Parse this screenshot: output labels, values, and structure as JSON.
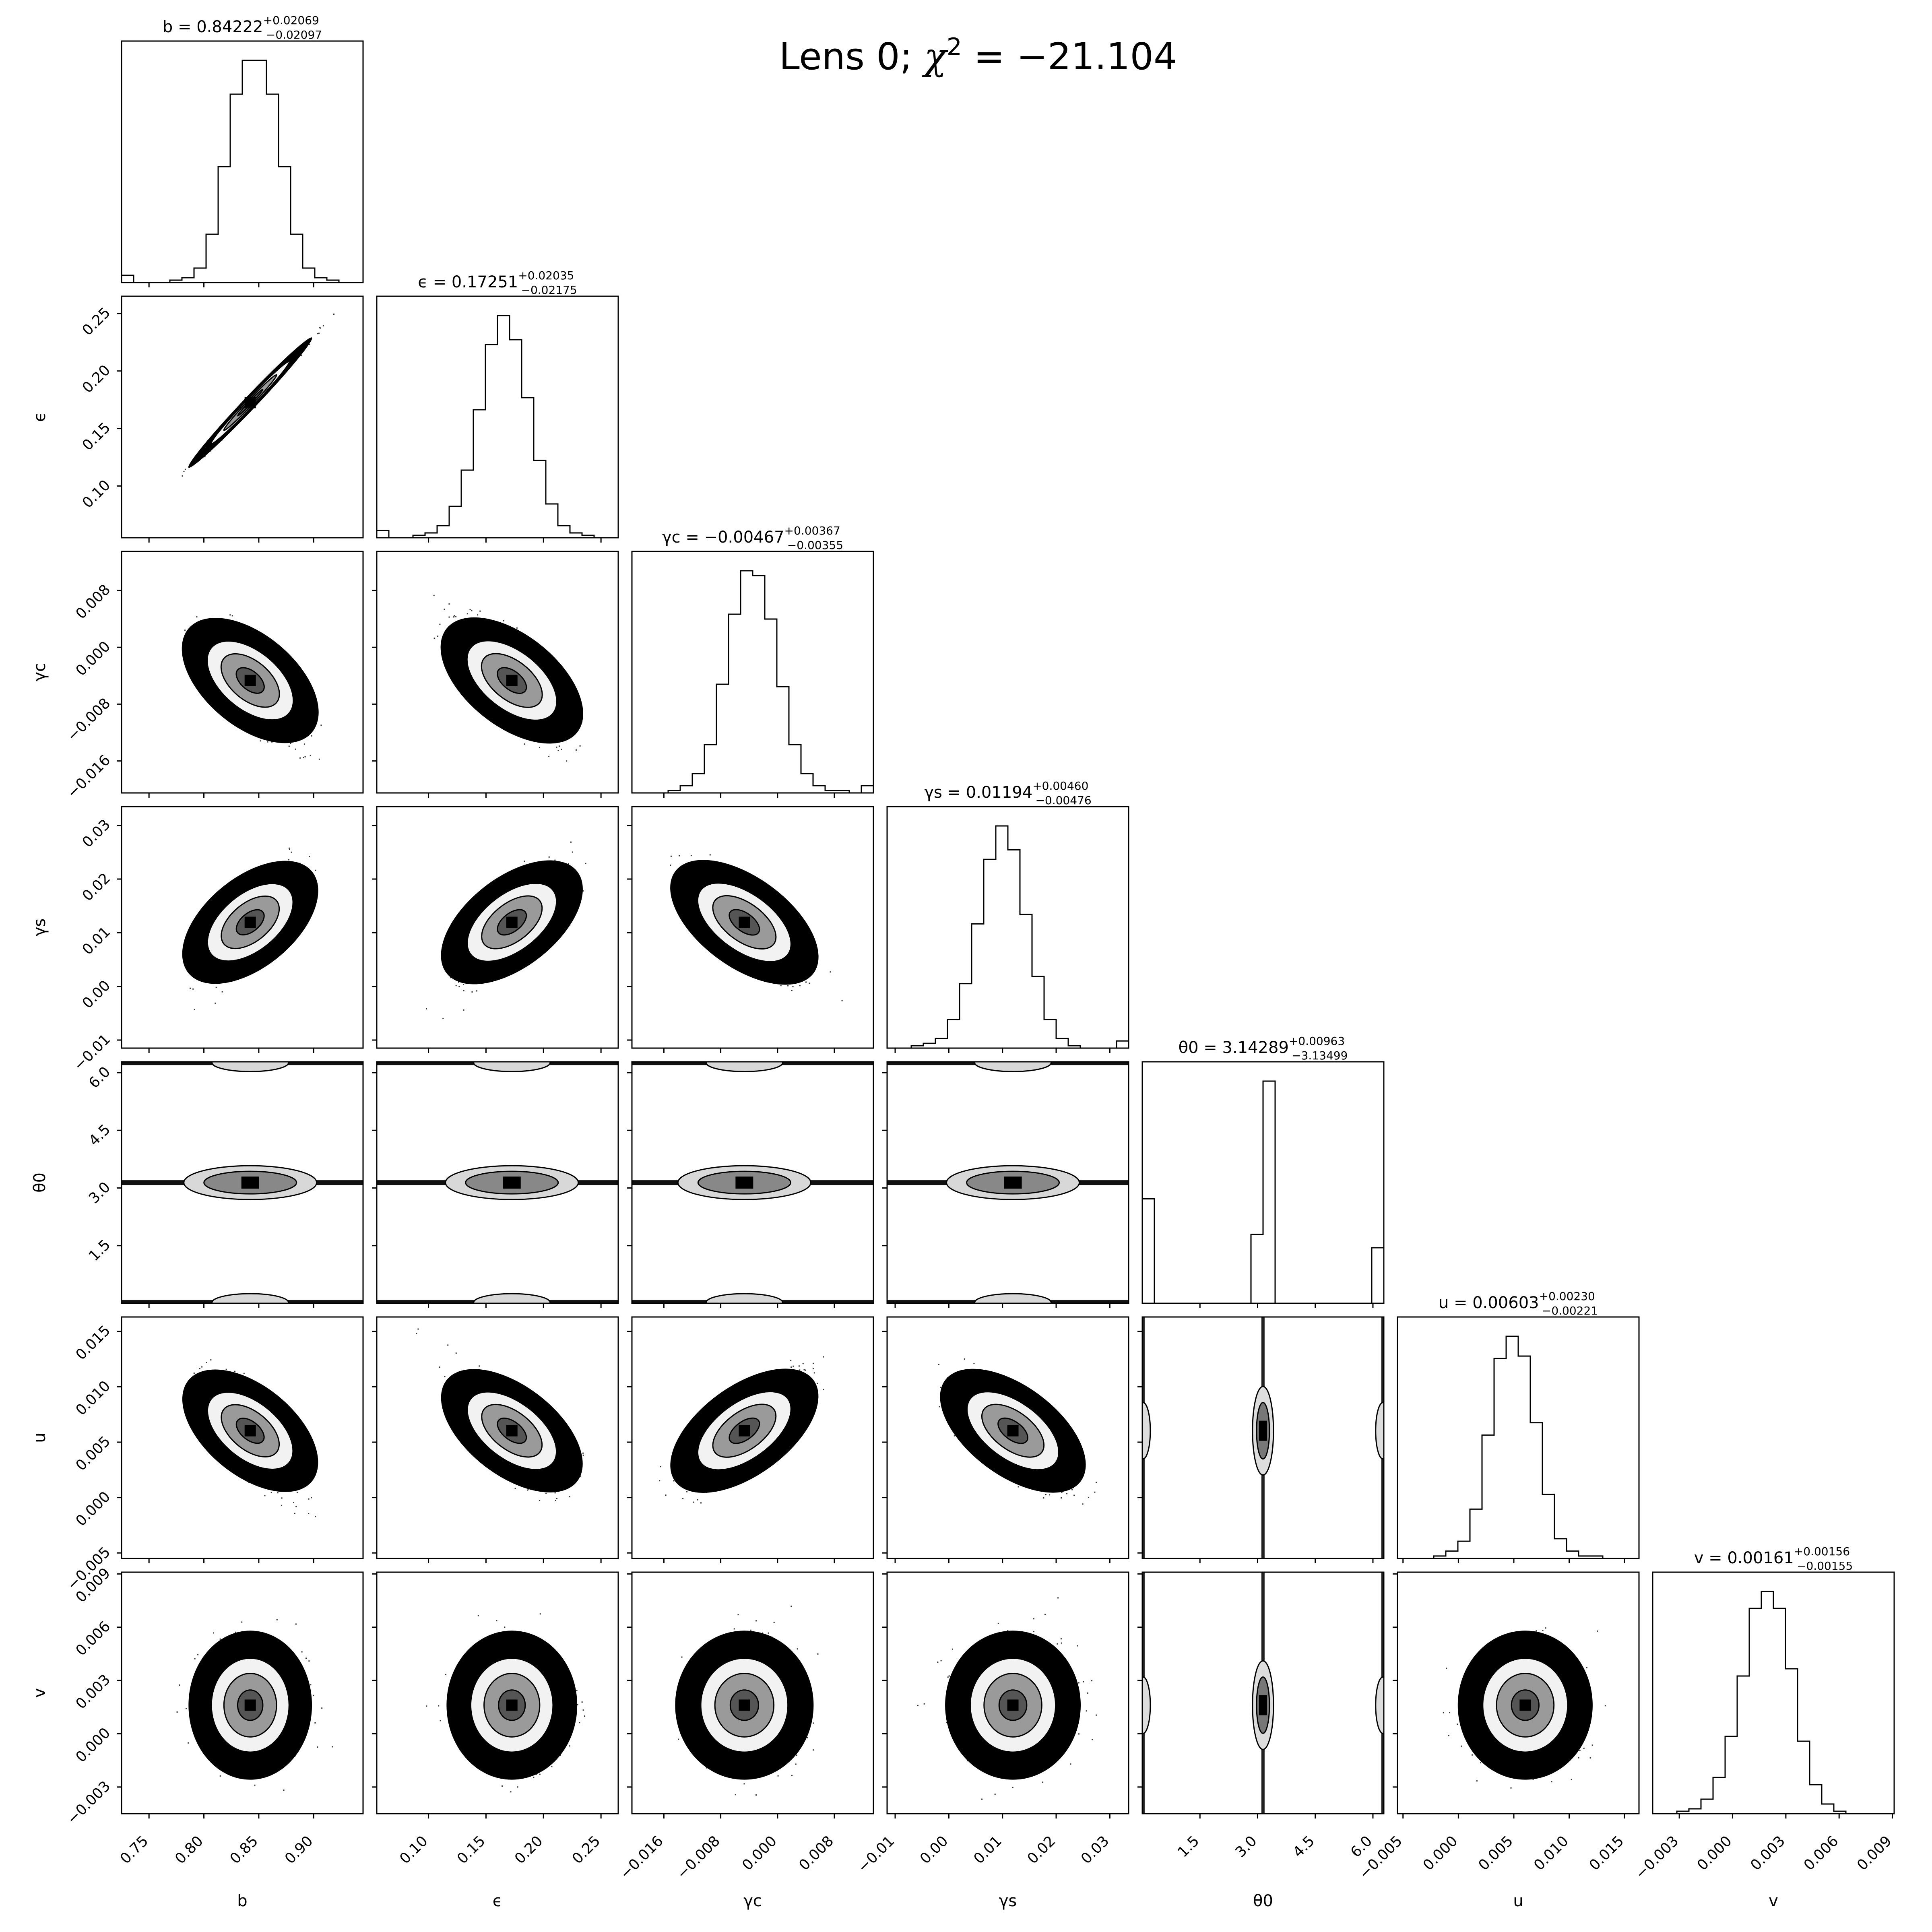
{
  "title": {
    "prefix": "Lens 0; ",
    "chi": "χ",
    "sup": "2",
    "suffix": " = −21.104"
  },
  "params": [
    {
      "name": "b",
      "label": "b",
      "median": "0.84222",
      "plus": "+0.02069",
      "minus": "−0.02097",
      "range": [
        0.725,
        0.945
      ],
      "ticks": [
        0.75,
        0.8,
        0.85,
        0.9
      ],
      "tick_labels": [
        "0.75",
        "0.80",
        "0.85",
        "0.90"
      ]
    },
    {
      "name": "epsilon",
      "label": "ϵ",
      "median": "0.17251",
      "plus": "+0.02035",
      "minus": "−0.02175",
      "range": [
        0.055,
        0.265
      ],
      "ticks": [
        0.1,
        0.15,
        0.2,
        0.25
      ],
      "tick_labels": [
        "0.10",
        "0.15",
        "0.20",
        "0.25"
      ]
    },
    {
      "name": "gamma-c",
      "label": "γc",
      "median": "−0.00467",
      "plus": "+0.00367",
      "minus": "−0.00355",
      "range": [
        -0.0205,
        0.0135
      ],
      "ticks": [
        -0.016,
        -0.008,
        0.0,
        0.008
      ],
      "tick_labels": [
        "−0.016",
        "−0.008",
        "0.000",
        "0.008"
      ]
    },
    {
      "name": "gamma-s",
      "label": "γs",
      "median": "0.01194",
      "plus": "+0.00460",
      "minus": "−0.00476",
      "range": [
        -0.0115,
        0.0335
      ],
      "ticks": [
        -0.01,
        0.0,
        0.01,
        0.02,
        0.03
      ],
      "tick_labels": [
        "−0.01",
        "0.00",
        "0.01",
        "0.02",
        "0.03"
      ]
    },
    {
      "name": "theta0",
      "label": "θ0",
      "median": "3.14289",
      "plus": "+0.00963",
      "minus": "−3.13499",
      "range": [
        0.0,
        6.283
      ],
      "ticks": [
        1.5,
        3.0,
        4.5,
        6.0
      ],
      "tick_labels": [
        "1.5",
        "3.0",
        "4.5",
        "6.0"
      ]
    },
    {
      "name": "u",
      "label": "u",
      "median": "0.00603",
      "plus": "+0.00230",
      "minus": "−0.00221",
      "range": [
        -0.0055,
        0.0163
      ],
      "ticks": [
        -0.005,
        0.0,
        0.005,
        0.01,
        0.015
      ],
      "tick_labels": [
        "−0.005",
        "0.000",
        "0.005",
        "0.010",
        "0.015"
      ]
    },
    {
      "name": "v",
      "label": "v",
      "median": "0.00161",
      "plus": "+0.00156",
      "minus": "−0.00155",
      "range": [
        -0.0045,
        0.0091
      ],
      "ticks": [
        -0.003,
        0.0,
        0.003,
        0.006,
        0.009
      ],
      "tick_labels": [
        "−0.003",
        "0.000",
        "0.003",
        "0.006",
        "0.009"
      ]
    }
  ],
  "chart_data": {
    "type": "corner",
    "histograms": [
      {
        "param": "b",
        "bins": 20,
        "counts": [
          3,
          0,
          0,
          0,
          1,
          2,
          6,
          20,
          48,
          78,
          92,
          92,
          78,
          48,
          20,
          6,
          2,
          1,
          0,
          0
        ]
      },
      {
        "param": "ϵ",
        "bins": 20,
        "counts": [
          3,
          0,
          0,
          1,
          2,
          5,
          13,
          28,
          53,
          80,
          92,
          82,
          58,
          32,
          14,
          5,
          2,
          1,
          0,
          0
        ]
      },
      {
        "param": "γc",
        "bins": 20,
        "counts": [
          0,
          0,
          0,
          1,
          3,
          8,
          20,
          45,
          74,
          92,
          90,
          72,
          44,
          20,
          8,
          3,
          1,
          1,
          0,
          3
        ]
      },
      {
        "param": "γs",
        "bins": 20,
        "counts": [
          0,
          0,
          1,
          2,
          4,
          12,
          27,
          52,
          79,
          93,
          83,
          56,
          30,
          12,
          4,
          1,
          0,
          0,
          0,
          3
        ]
      },
      {
        "param": "θ0",
        "bins": 20,
        "counts": [
          47,
          0,
          0,
          0,
          0,
          0,
          0,
          0,
          0,
          31,
          100,
          0,
          0,
          0,
          0,
          0,
          0,
          0,
          0,
          25
        ]
      },
      {
        "param": "u",
        "bins": 20,
        "counts": [
          0,
          0,
          0,
          1,
          3,
          7,
          20,
          50,
          81,
          90,
          82,
          55,
          26,
          8,
          3,
          1,
          1,
          0,
          0,
          0
        ]
      },
      {
        "param": "v",
        "bins": 20,
        "counts": [
          0,
          0,
          1,
          2,
          6,
          15,
          32,
          57,
          85,
          92,
          85,
          60,
          30,
          12,
          4,
          1,
          0,
          0,
          0,
          0
        ]
      }
    ],
    "correlations": [
      {
        "pair": [
          "b",
          "ϵ"
        ],
        "rho": 0.995
      },
      {
        "pair": [
          "b",
          "γc"
        ],
        "rho": -0.75
      },
      {
        "pair": [
          "ϵ",
          "γc"
        ],
        "rho": -0.75
      },
      {
        "pair": [
          "b",
          "γs"
        ],
        "rho": 0.75
      },
      {
        "pair": [
          "ϵ",
          "γs"
        ],
        "rho": 0.75
      },
      {
        "pair": [
          "γc",
          "γs"
        ],
        "rho": -0.75
      },
      {
        "pair": [
          "b",
          "u"
        ],
        "rho": -0.75
      },
      {
        "pair": [
          "ϵ",
          "u"
        ],
        "rho": -0.75
      },
      {
        "pair": [
          "γc",
          "u"
        ],
        "rho": 0.75
      },
      {
        "pair": [
          "γs",
          "u"
        ],
        "rho": -0.75
      },
      {
        "pair": [
          "b",
          "v"
        ],
        "rho": 0.0
      },
      {
        "pair": [
          "ϵ",
          "v"
        ],
        "rho": 0.0
      },
      {
        "pair": [
          "γc",
          "v"
        ],
        "rho": 0.0
      },
      {
        "pair": [
          "γs",
          "v"
        ],
        "rho": 0.0
      },
      {
        "pair": [
          "u",
          "v"
        ],
        "rho": 0.0
      }
    ],
    "theta0_modes": [
      0.02,
      3.14,
      6.26
    ],
    "grid": false
  }
}
